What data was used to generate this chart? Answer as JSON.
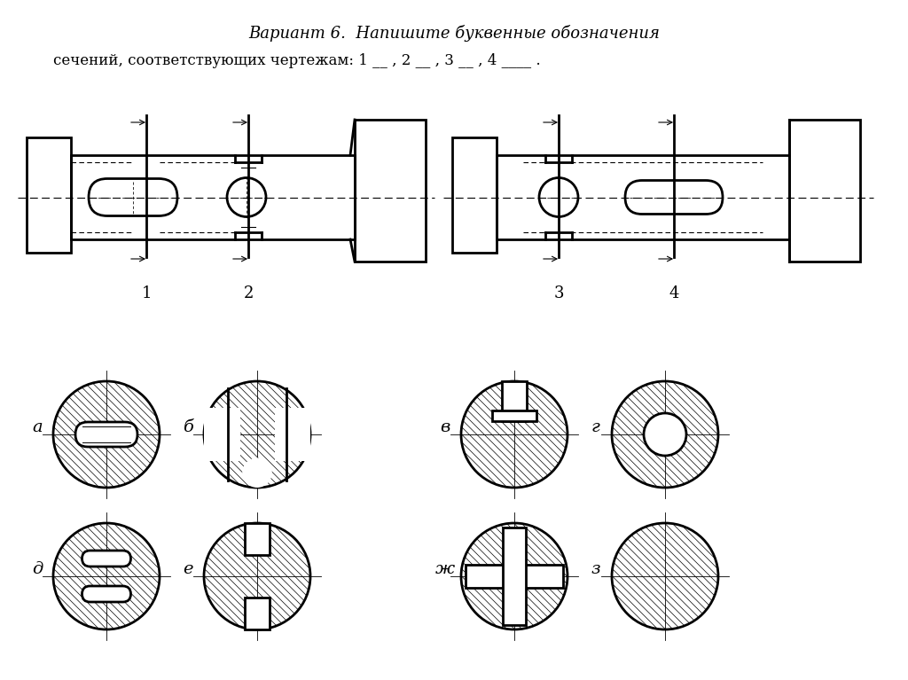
{
  "title_line1": "Вариант 6.  Напишите буквенные обозначения",
  "title_line2": "сечений, соответствующих чертежам: 1 __ , 2 __ , 3 __ , 4 ____ .",
  "bg_color": "#ffffff",
  "labels_top": [
    "а",
    "б",
    "в",
    "г"
  ],
  "labels_bottom": [
    "д",
    "е",
    "ж",
    "з"
  ],
  "drawing_labels": [
    "1",
    "2",
    "3",
    "4"
  ]
}
